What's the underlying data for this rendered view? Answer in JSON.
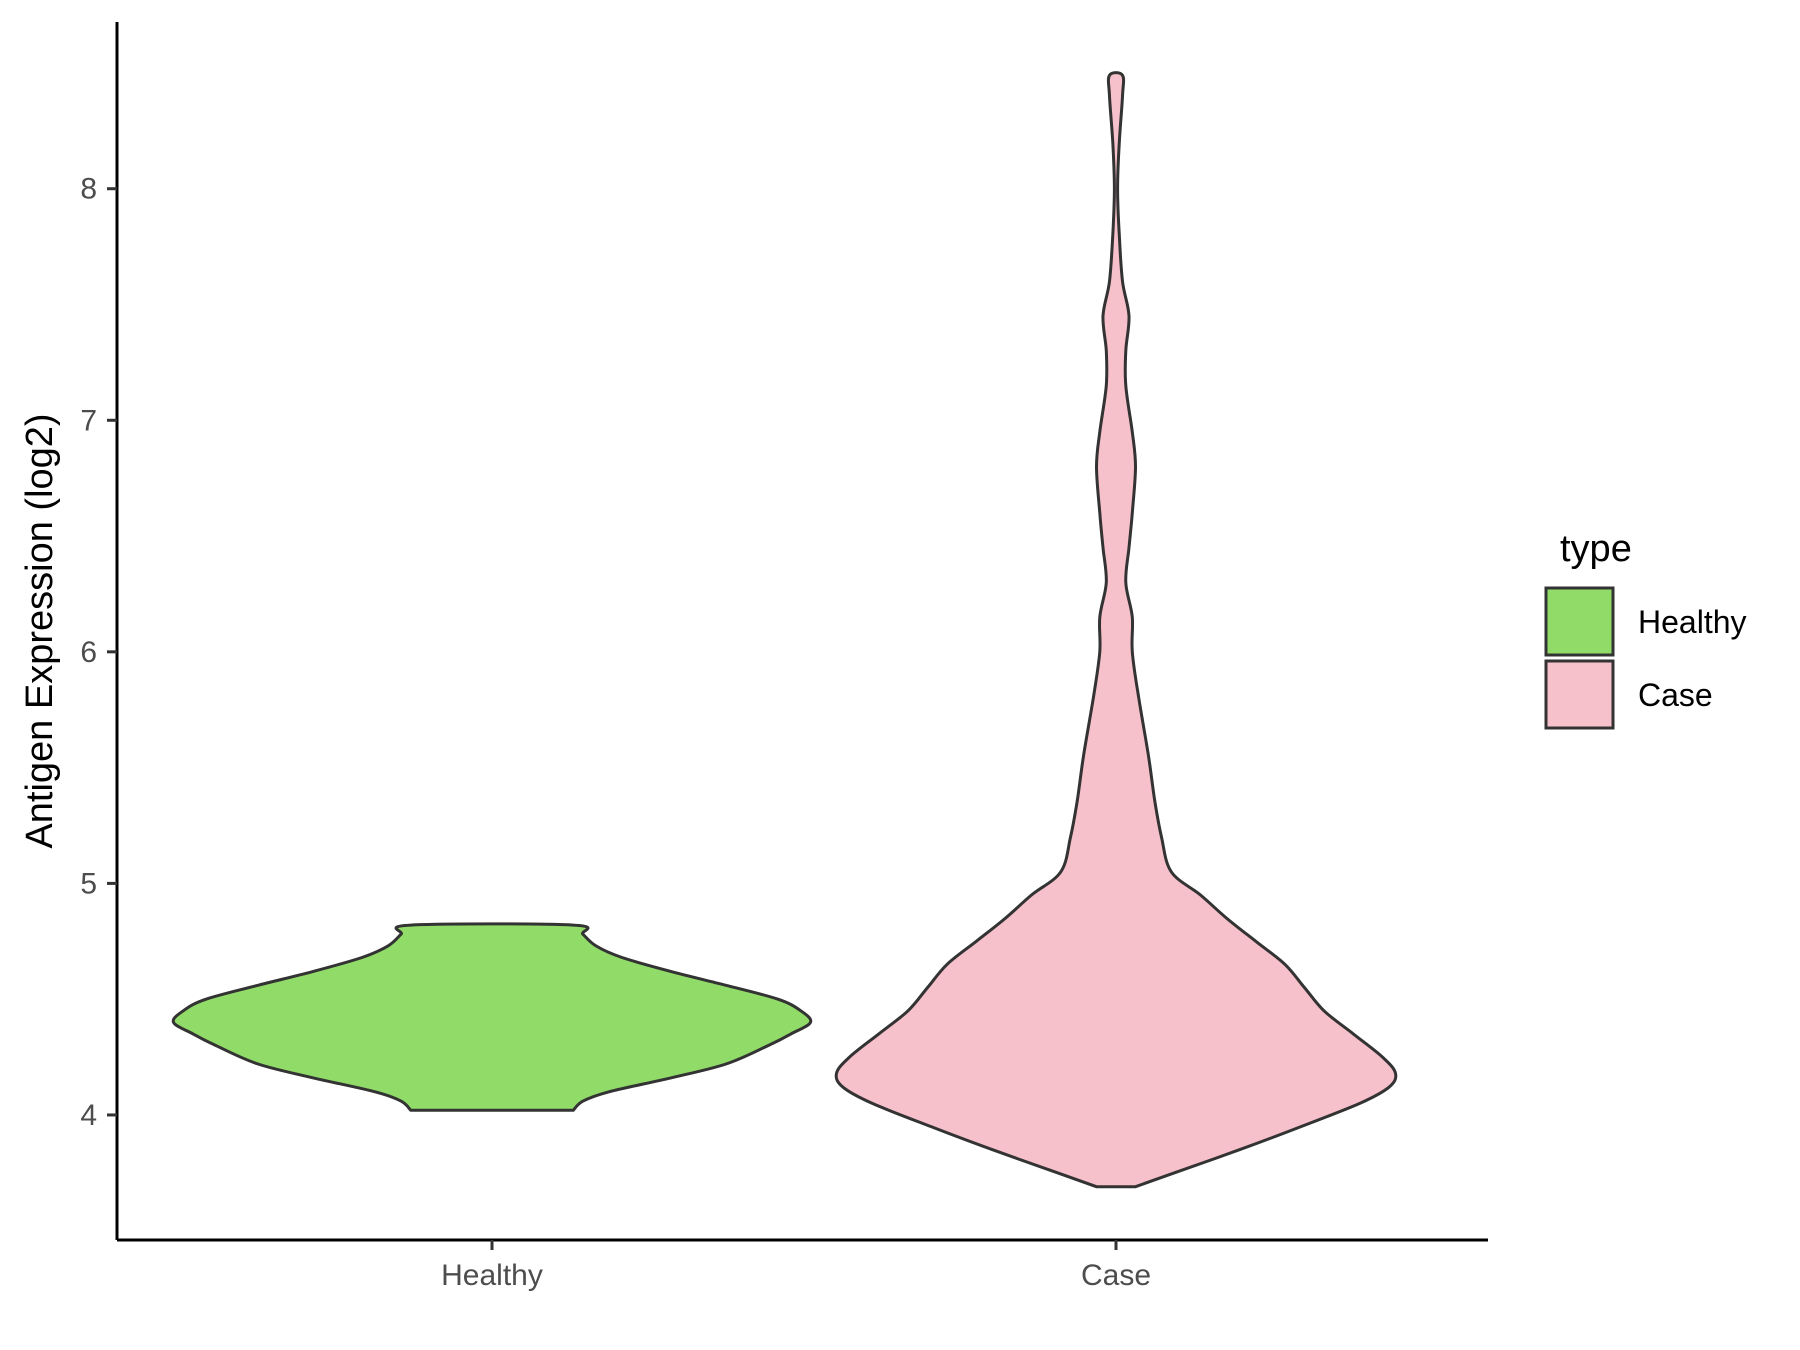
{
  "chart_data": {
    "type": "violin",
    "title": "",
    "xlabel": "",
    "ylabel": "Antigen Expression (log2)",
    "ylim": [
      3.46,
      8.72
    ],
    "yticks": [
      4,
      5,
      6,
      7,
      8
    ],
    "categories": [
      "Healthy",
      "Case"
    ],
    "legend": {
      "title": "type",
      "position": "right",
      "entries": [
        {
          "label": "Healthy",
          "color": "#91dc69"
        },
        {
          "label": "Case",
          "color": "#f7c1cc"
        }
      ]
    },
    "grid": false,
    "series": [
      {
        "name": "Healthy",
        "color": "#91dc69",
        "min": 4.02,
        "max": 4.82,
        "density_profile": [
          [
            4.02,
            0.25
          ],
          [
            4.06,
            0.28
          ],
          [
            4.1,
            0.36
          ],
          [
            4.16,
            0.55
          ],
          [
            4.22,
            0.72
          ],
          [
            4.3,
            0.85
          ],
          [
            4.35,
            0.92
          ],
          [
            4.4,
            0.98
          ],
          [
            4.45,
            0.95
          ],
          [
            4.5,
            0.88
          ],
          [
            4.56,
            0.72
          ],
          [
            4.62,
            0.55
          ],
          [
            4.68,
            0.4
          ],
          [
            4.73,
            0.32
          ],
          [
            4.78,
            0.28
          ],
          [
            4.82,
            0.25
          ]
        ]
      },
      {
        "name": "Case",
        "color": "#f7c1cc",
        "min": 3.69,
        "max": 8.49,
        "density_profile": [
          [
            3.69,
            0.06
          ],
          [
            3.75,
            0.18
          ],
          [
            3.85,
            0.38
          ],
          [
            3.95,
            0.57
          ],
          [
            4.05,
            0.75
          ],
          [
            4.12,
            0.84
          ],
          [
            4.18,
            0.86
          ],
          [
            4.25,
            0.82
          ],
          [
            4.35,
            0.73
          ],
          [
            4.45,
            0.64
          ],
          [
            4.55,
            0.58
          ],
          [
            4.65,
            0.52
          ],
          [
            4.75,
            0.43
          ],
          [
            4.85,
            0.34
          ],
          [
            4.95,
            0.26
          ],
          [
            5.05,
            0.17
          ],
          [
            5.2,
            0.14
          ],
          [
            5.35,
            0.12
          ],
          [
            5.55,
            0.1
          ],
          [
            5.8,
            0.07
          ],
          [
            6.0,
            0.05
          ],
          [
            6.15,
            0.05
          ],
          [
            6.3,
            0.03
          ],
          [
            6.45,
            0.04
          ],
          [
            6.6,
            0.05
          ],
          [
            6.8,
            0.06
          ],
          [
            6.95,
            0.05
          ],
          [
            7.15,
            0.03
          ],
          [
            7.3,
            0.03
          ],
          [
            7.45,
            0.04
          ],
          [
            7.6,
            0.02
          ],
          [
            7.8,
            0.01
          ],
          [
            8.0,
            0.005
          ],
          [
            8.2,
            0.01
          ],
          [
            8.4,
            0.02
          ],
          [
            8.49,
            0.02
          ]
        ]
      }
    ]
  }
}
